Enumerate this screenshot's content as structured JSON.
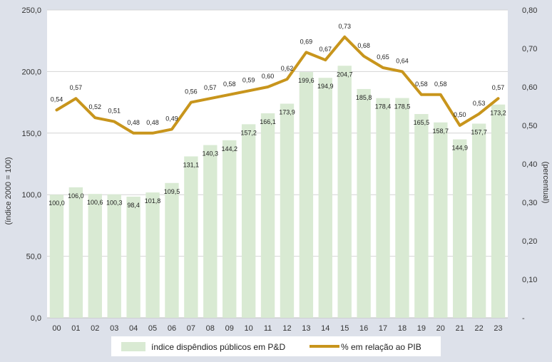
{
  "chart_data": {
    "type": "bar+line",
    "categories": [
      "00",
      "01",
      "02",
      "03",
      "04",
      "05",
      "06",
      "07",
      "08",
      "09",
      "10",
      "11",
      "12",
      "13",
      "14",
      "15",
      "16",
      "17",
      "18",
      "19",
      "20",
      "21",
      "22",
      "23"
    ],
    "series": [
      {
        "name": "índice dispêndios públicos em P&D",
        "type": "bar",
        "axis": "left",
        "color": "#d9ead3",
        "values": [
          100.0,
          106.0,
          100.6,
          100.3,
          98.4,
          101.8,
          109.5,
          131.1,
          140.3,
          144.2,
          157.2,
          166.1,
          173.9,
          199.6,
          194.9,
          204.7,
          185.8,
          178.4,
          178.5,
          165.5,
          158.7,
          144.9,
          157.7,
          173.2
        ],
        "labels": [
          "100,0",
          "106,0",
          "100,6",
          "100,3",
          "98,4",
          "101,8",
          "109,5",
          "131,1",
          "140,3",
          "144,2",
          "157,2",
          "166,1",
          "173,9",
          "199,6",
          "194,9",
          "204,7",
          "185,8",
          "178,4",
          "178,5",
          "165,5",
          "158,7",
          "144,9",
          "157,7",
          "173,2"
        ]
      },
      {
        "name": "% em relação ao PIB",
        "type": "line",
        "axis": "right",
        "color": "#c8951c",
        "values": [
          0.54,
          0.57,
          0.52,
          0.51,
          0.48,
          0.48,
          0.49,
          0.56,
          0.57,
          0.58,
          0.59,
          0.6,
          0.62,
          0.69,
          0.67,
          0.73,
          0.68,
          0.65,
          0.64,
          0.58,
          0.58,
          0.5,
          0.53,
          0.57
        ],
        "labels": [
          "0,54",
          "0,57",
          "0,52",
          "0,51",
          "0,48",
          "0,48",
          "0,49",
          "0,56",
          "0,57",
          "0,58",
          "0,59",
          "0,60",
          "0,62",
          "0,69",
          "0,67",
          "0,73",
          "0,68",
          "0,65",
          "0,64",
          "0,58",
          "0,58",
          "0,50",
          "0,53",
          "0,57"
        ]
      }
    ],
    "y_left": {
      "label": "(índice 2000 = 100)",
      "range": [
        0,
        250
      ],
      "ticks": [
        0,
        50,
        100,
        150,
        200,
        250
      ],
      "tick_labels": [
        "0,0",
        "50,0",
        "100,0",
        "150,0",
        "200,0",
        "250,0"
      ]
    },
    "y_right": {
      "label": "(percentual)",
      "range": [
        0,
        0.8
      ],
      "ticks": [
        0,
        0.1,
        0.2,
        0.3,
        0.4,
        0.5,
        0.6,
        0.7,
        0.8
      ],
      "tick_labels": [
        "-",
        "0,10",
        "0,20",
        "0,30",
        "0,40",
        "0,50",
        "0,60",
        "0,70",
        "0,80"
      ]
    },
    "grid": true,
    "legend": "bottom"
  }
}
